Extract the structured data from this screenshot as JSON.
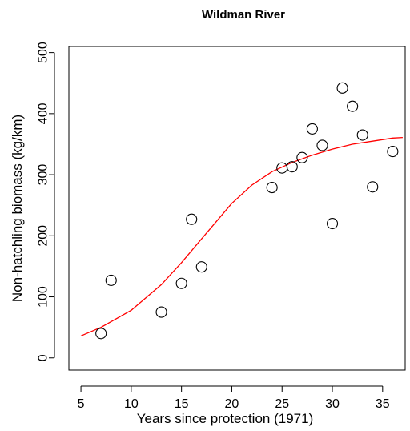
{
  "chart_data": {
    "type": "scatter",
    "title": "Wildman River",
    "xlabel": "Years since protection (1971)",
    "ylabel": "Non-hatchling biomass (kg/km)",
    "xlim": [
      3.8,
      38.2
    ],
    "ylim": [
      -20,
      510
    ],
    "x_ticks": [
      5,
      10,
      15,
      20,
      25,
      30,
      35
    ],
    "y_ticks": [
      0,
      100,
      200,
      300,
      400,
      500
    ],
    "grid": false,
    "legend": "none",
    "colors": {
      "points": "#000000",
      "fit": "#ff0000"
    },
    "series": [
      {
        "kind": "points",
        "x": [
          7,
          8,
          13,
          15,
          16,
          17,
          24,
          25,
          26,
          27,
          28,
          29,
          30,
          31,
          32,
          33,
          34,
          36
        ],
        "y": [
          40,
          127,
          75,
          122,
          227,
          149,
          279,
          311,
          313,
          328,
          375,
          348,
          220,
          442,
          412,
          365,
          280,
          338
        ]
      },
      {
        "kind": "fit-curve",
        "x": [
          5,
          7,
          10,
          13,
          15,
          17,
          20,
          22,
          24,
          26,
          28,
          30,
          32,
          34,
          36,
          37
        ],
        "y": [
          36,
          50,
          78,
          120,
          156,
          195,
          253,
          283,
          305,
          320,
          332,
          342,
          350,
          355,
          360,
          361
        ]
      }
    ]
  }
}
